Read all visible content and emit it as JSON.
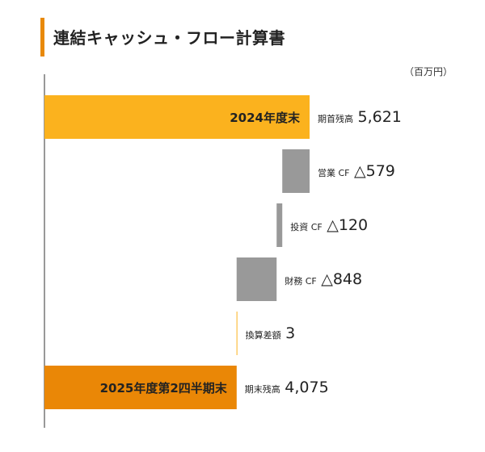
{
  "title": "連結キャッシュ・フロー計算書",
  "unit": "（百万円）",
  "colors": {
    "accent": "#e8890a",
    "start_bar": "#fbb21e",
    "end_bar": "#ea8706",
    "flow_bar": "#999999",
    "diff_bar": "#fbb21e",
    "axis": "#555555"
  },
  "chart_data": {
    "type": "bar",
    "orientation": "horizontal-waterfall",
    "title": "連結キャッシュ・フロー計算書",
    "unit": "（百万円）",
    "grid": false,
    "legend": "none",
    "xlim": [
      0,
      5621
    ],
    "items": [
      {
        "bar_label": "2024年度末",
        "label": "期首残高",
        "display": "5,621",
        "kind": "total",
        "start": 0,
        "end": 5621
      },
      {
        "bar_label": "",
        "label": "営業 CF",
        "display": "△579",
        "kind": "decrease",
        "start": 5621,
        "end": 5042
      },
      {
        "bar_label": "",
        "label": "投資 CF",
        "display": "△120",
        "kind": "decrease",
        "start": 5042,
        "end": 4922
      },
      {
        "bar_label": "",
        "label": "財務 CF",
        "display": "△848",
        "kind": "decrease",
        "start": 4922,
        "end": 4074
      },
      {
        "bar_label": "",
        "label": "換算差額",
        "display": "3",
        "kind": "increase",
        "start": 4072,
        "end": 4075
      },
      {
        "bar_label": "2025年度第2四半期末",
        "label": "期末残高",
        "display": "4,075",
        "kind": "total",
        "start": 0,
        "end": 4075
      }
    ]
  }
}
